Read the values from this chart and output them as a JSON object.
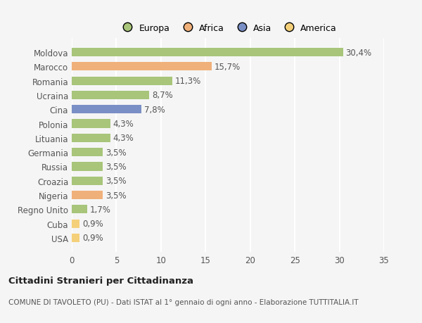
{
  "countries": [
    "Moldova",
    "Marocco",
    "Romania",
    "Ucraina",
    "Cina",
    "Polonia",
    "Lituania",
    "Germania",
    "Russia",
    "Croazia",
    "Nigeria",
    "Regno Unito",
    "Cuba",
    "USA"
  ],
  "values": [
    30.4,
    15.7,
    11.3,
    8.7,
    7.8,
    4.3,
    4.3,
    3.5,
    3.5,
    3.5,
    3.5,
    1.7,
    0.9,
    0.9
  ],
  "labels": [
    "30,4%",
    "15,7%",
    "11,3%",
    "8,7%",
    "7,8%",
    "4,3%",
    "4,3%",
    "3,5%",
    "3,5%",
    "3,5%",
    "3,5%",
    "1,7%",
    "0,9%",
    "0,9%"
  ],
  "colors": [
    "#a8c57a",
    "#f0b07a",
    "#a8c57a",
    "#a8c57a",
    "#7a8fc5",
    "#a8c57a",
    "#a8c57a",
    "#a8c57a",
    "#a8c57a",
    "#a8c57a",
    "#f0b07a",
    "#a8c57a",
    "#f5d07a",
    "#f5d07a"
  ],
  "legend_labels": [
    "Europa",
    "Africa",
    "Asia",
    "America"
  ],
  "legend_colors": [
    "#a8c57a",
    "#f0b07a",
    "#7a8fc5",
    "#f5d07a"
  ],
  "title": "Cittadini Stranieri per Cittadinanza",
  "subtitle": "COMUNE DI TAVOLETO (PU) - Dati ISTAT al 1° gennaio di ogni anno - Elaborazione TUTTITALIA.IT",
  "xlim": [
    0,
    35
  ],
  "xticks": [
    0,
    5,
    10,
    15,
    20,
    25,
    30,
    35
  ],
  "background_color": "#f5f5f5",
  "bar_height": 0.6,
  "grid_color": "#ffffff",
  "label_fontsize": 8.5,
  "tick_fontsize": 8.5,
  "ylabel_fontsize": 8.5
}
